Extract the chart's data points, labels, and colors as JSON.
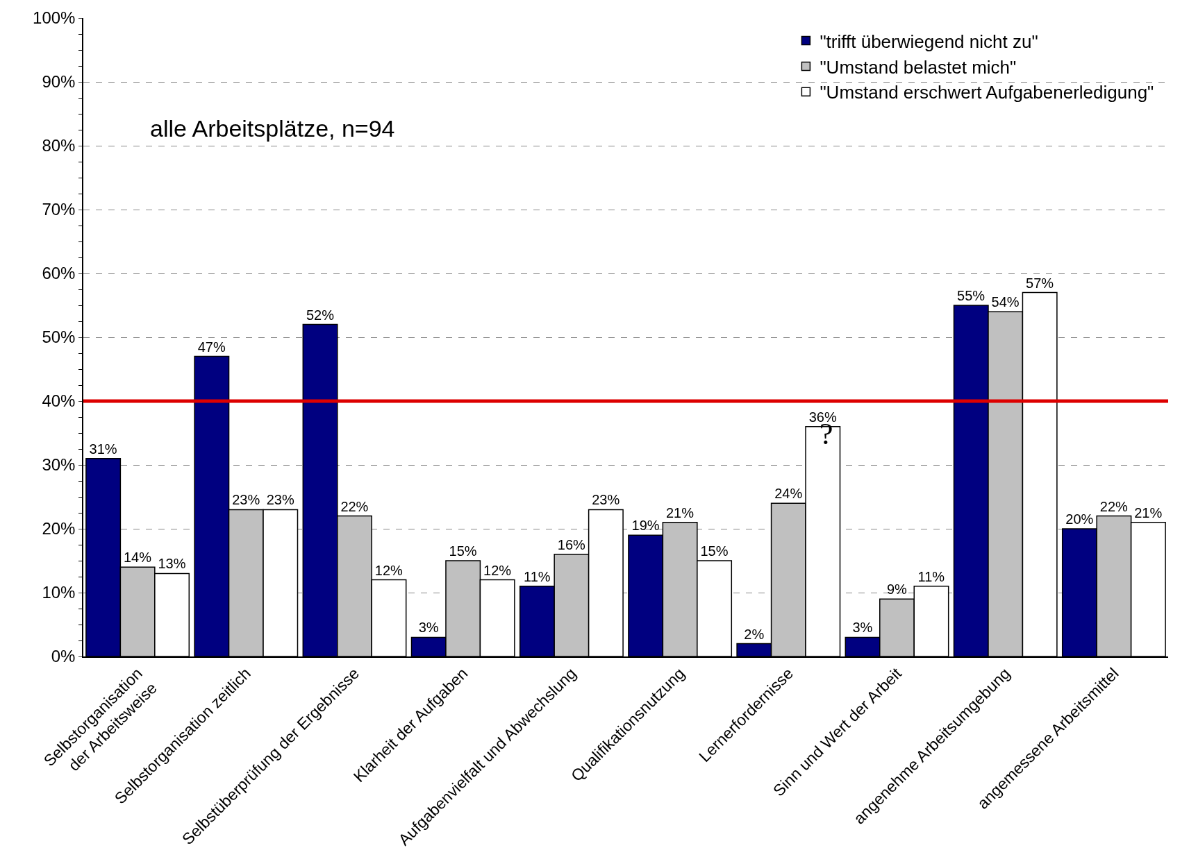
{
  "chart_data": {
    "type": "bar",
    "categories": [
      "Selbstorganisation\nder Arbeitsweise",
      "Selbstorganisation zeitlich",
      "Selbstüberprüfung der Ergebnisse",
      "Klarheit der Aufgaben",
      "Aufgabenvielfalt und Abwechslung",
      "Qualifikationsnutzung",
      "Lernerfordernisse",
      "Sinn und Wert der Arbeit",
      "angenehme Arbeitsumgebung",
      "angemessene Arbeitsmittel"
    ],
    "series": [
      {
        "name": "\"trifft überwiegend nicht zu\"",
        "color": "#000080",
        "values": [
          31,
          47,
          52,
          3,
          11,
          19,
          2,
          3,
          55,
          20
        ],
        "value_labels": [
          "31%",
          "47%",
          "52%",
          "3%",
          "11%",
          "19%",
          "2%",
          "3%",
          "55%",
          "20%"
        ]
      },
      {
        "name": "\"Umstand belastet mich\"",
        "color": "#c0c0c0",
        "values": [
          14,
          23,
          22,
          15,
          16,
          21,
          24,
          9,
          54,
          22
        ],
        "value_labels": [
          "14%",
          "23%",
          "22%",
          "15%",
          "16%",
          "21%",
          "24%",
          "9%",
          "54%",
          "22%"
        ]
      },
      {
        "name": "\"Umstand erschwert Aufgabenerledigung\"",
        "color": "#ffffff",
        "values": [
          13,
          23,
          12,
          12,
          23,
          15,
          36,
          11,
          57,
          21
        ],
        "value_labels": [
          "13%",
          "23%",
          "12%",
          "12%",
          "23%",
          "15%",
          "36%",
          "11%",
          "57%",
          "21%"
        ]
      }
    ],
    "ylim": [
      0,
      100
    ],
    "yticks": [
      {
        "value": 0,
        "label": "0%"
      },
      {
        "value": 10,
        "label": "10%"
      },
      {
        "value": 20,
        "label": "20%"
      },
      {
        "value": 30,
        "label": "30%"
      },
      {
        "value": 40,
        "label": "40%"
      },
      {
        "value": 50,
        "label": "50%"
      },
      {
        "value": 60,
        "label": "60%"
      },
      {
        "value": 70,
        "label": "70%"
      },
      {
        "value": 80,
        "label": "80%"
      },
      {
        "value": 90,
        "label": "90%"
      },
      {
        "value": 100,
        "label": "100%"
      }
    ],
    "grid": "y",
    "legend": "top right",
    "ref_lines": [
      {
        "axis": "y",
        "value": 40,
        "color": "#dd0000"
      }
    ],
    "annotations": [
      "alle Arbeitsplätze, n=94",
      "?"
    ]
  }
}
